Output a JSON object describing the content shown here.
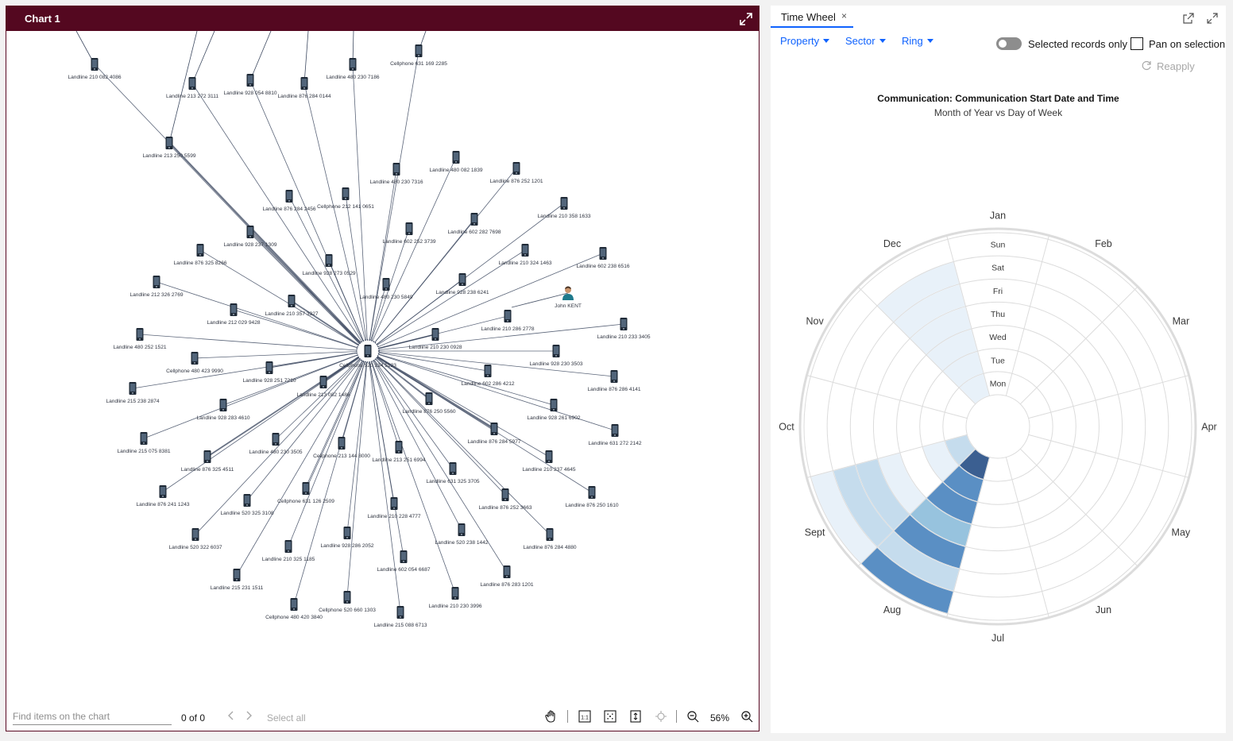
{
  "chart_panel": {
    "title": "Chart 1",
    "footer": {
      "find_placeholder": "Find items on the chart",
      "match_count": "0 of 0",
      "select_all": "Select all",
      "zoom": "56%"
    }
  },
  "graph": {
    "hub": {
      "label": "Cellphone 520 134 5123",
      "icon": "phone-icon"
    },
    "nodes": [
      {
        "label": "Landline 210 082 4086",
        "icon": "phone-icon"
      },
      {
        "label": "Landline 213 272 3111",
        "icon": "phone-icon"
      },
      {
        "label": "Landline 928 054 8810",
        "icon": "phone-icon"
      },
      {
        "label": "Landline 876 284 0144",
        "icon": "phone-icon"
      },
      {
        "label": "Landline 480 230 7186",
        "icon": "phone-icon"
      },
      {
        "label": "Cellphone 631 169 2285",
        "icon": "phone-icon"
      },
      {
        "label": "Landline 213 250 5599",
        "icon": "phone-icon"
      },
      {
        "label": "Landline 480 230 7316",
        "icon": "phone-icon"
      },
      {
        "label": "Landline 480 082 1839",
        "icon": "phone-icon"
      },
      {
        "label": "Landline 876 252 1201",
        "icon": "phone-icon"
      },
      {
        "label": "Landline 876 284 2456",
        "icon": "phone-icon"
      },
      {
        "label": "Cellphone 212 141 0651",
        "icon": "phone-icon"
      },
      {
        "label": "Landline 210 358 1633",
        "icon": "phone-icon"
      },
      {
        "label": "Landline 602 282 7698",
        "icon": "phone-icon"
      },
      {
        "label": "Landline 602 252 3739",
        "icon": "phone-icon"
      },
      {
        "label": "Landline 928 237 1309",
        "icon": "phone-icon"
      },
      {
        "label": "Landline 876 325 8266",
        "icon": "phone-icon"
      },
      {
        "label": "Landline 928 273 0529",
        "icon": "phone-icon"
      },
      {
        "label": "Landline 210 324 1463",
        "icon": "phone-icon"
      },
      {
        "label": "Landline 602 238 6516",
        "icon": "phone-icon"
      },
      {
        "label": "Landline 212 326 2769",
        "icon": "phone-icon"
      },
      {
        "label": "Landline 480 230 5849",
        "icon": "phone-icon"
      },
      {
        "label": "Landline 928 238 6241",
        "icon": "phone-icon"
      },
      {
        "label": "John KENT",
        "icon": "person-icon"
      },
      {
        "label": "Landline 210 357 3327",
        "icon": "phone-icon"
      },
      {
        "label": "Landline 212 029 9428",
        "icon": "phone-icon"
      },
      {
        "label": "Landline 210 286 2778",
        "icon": "phone-icon"
      },
      {
        "label": "Landline 210 233 3405",
        "icon": "phone-icon"
      },
      {
        "label": "Landline 480 252 1521",
        "icon": "phone-icon"
      },
      {
        "label": "Landline 210 230 0928",
        "icon": "phone-icon"
      },
      {
        "label": "Cellphone 480 423 9990",
        "icon": "phone-icon"
      },
      {
        "label": "Landline 928 230 3503",
        "icon": "phone-icon"
      },
      {
        "label": "Landline 928 251 7210",
        "icon": "phone-icon"
      },
      {
        "label": "Landline 876 286 4141",
        "icon": "phone-icon"
      },
      {
        "label": "Landline 602 286 4212",
        "icon": "phone-icon"
      },
      {
        "label": "Landline 215 238 2874",
        "icon": "phone-icon"
      },
      {
        "label": "Landline 213 082 1486",
        "icon": "phone-icon"
      },
      {
        "label": "Landline 928 283 4610",
        "icon": "phone-icon"
      },
      {
        "label": "Landline 876 250 5560",
        "icon": "phone-icon"
      },
      {
        "label": "Landline 928 261 6902",
        "icon": "phone-icon"
      },
      {
        "label": "Landline 631 272 2142",
        "icon": "phone-icon"
      },
      {
        "label": "Landline 876 284 5977",
        "icon": "phone-icon"
      },
      {
        "label": "Landline 215 075 8381",
        "icon": "phone-icon"
      },
      {
        "label": "Landline 480 230 3505",
        "icon": "phone-icon"
      },
      {
        "label": "Cellphone 213 144 8000",
        "icon": "phone-icon"
      },
      {
        "label": "Landline 213 251 6994",
        "icon": "phone-icon"
      },
      {
        "label": "Landline 876 325 4511",
        "icon": "phone-icon"
      },
      {
        "label": "Landline 210 237 4645",
        "icon": "phone-icon"
      },
      {
        "label": "Landline 631 325 3705",
        "icon": "phone-icon"
      },
      {
        "label": "Landline 876 241 1243",
        "icon": "phone-icon"
      },
      {
        "label": "Landline 520 325 3108",
        "icon": "phone-icon"
      },
      {
        "label": "Cellphone 631 126 2509",
        "icon": "phone-icon"
      },
      {
        "label": "Landline 876 252 3663",
        "icon": "phone-icon"
      },
      {
        "label": "Landline 876 250 1610",
        "icon": "phone-icon"
      },
      {
        "label": "Landline 210 228 4777",
        "icon": "phone-icon"
      },
      {
        "label": "Landline 520 322 6037",
        "icon": "phone-icon"
      },
      {
        "label": "Landline 520 238 1442",
        "icon": "phone-icon"
      },
      {
        "label": "Landline 876 284 4880",
        "icon": "phone-icon"
      },
      {
        "label": "Landline 928 286 2052",
        "icon": "phone-icon"
      },
      {
        "label": "Landline 210 325 1185",
        "icon": "phone-icon"
      },
      {
        "label": "Landline 602 054 6687",
        "icon": "phone-icon"
      },
      {
        "label": "Landline 876 283 1201",
        "icon": "phone-icon"
      },
      {
        "label": "Landline 215 231 1511",
        "icon": "phone-icon"
      },
      {
        "label": "Landline 210 230 3996",
        "icon": "phone-icon"
      },
      {
        "label": "Cellphone 520 660 1303",
        "icon": "phone-icon"
      },
      {
        "label": "Cellphone 480 420 3840",
        "icon": "phone-icon"
      },
      {
        "label": "Landline 215 088 6713",
        "icon": "phone-icon"
      }
    ]
  },
  "wheel_panel": {
    "tab_label": "Time Wheel",
    "tab_close": "×",
    "dropdowns": [
      "Property",
      "Sector",
      "Ring"
    ],
    "selected_records_label": "Selected records only",
    "selected_records_on": false,
    "pan_label": "Pan on selection",
    "pan_checked": false,
    "reapply_label": "Reapply",
    "title": "Communication: Communication Start Date and Time",
    "subtitle": "Month of Year vs Day of Week"
  },
  "chart_data": {
    "type": "heatmap",
    "variant": "radial time wheel",
    "sectors": [
      "Jan",
      "Feb",
      "Mar",
      "Apr",
      "May",
      "Jun",
      "Jul",
      "Aug",
      "Sept",
      "Oct",
      "Nov",
      "Dec"
    ],
    "rings": [
      "Mon",
      "Tue",
      "Wed",
      "Thu",
      "Fri",
      "Sat",
      "Sun"
    ],
    "intensity_scale": "0 = empty, 5 = darkest blue",
    "values": [
      [
        0,
        0,
        0,
        0,
        0,
        0,
        0
      ],
      [
        0,
        0,
        0,
        0,
        0,
        0,
        0
      ],
      [
        0,
        0,
        0,
        0,
        0,
        0,
        0
      ],
      [
        0,
        0,
        0,
        0,
        0,
        0,
        0
      ],
      [
        0,
        0,
        0,
        0,
        0,
        0,
        0
      ],
      [
        0,
        0,
        0,
        0,
        0,
        0,
        0
      ],
      [
        0,
        0,
        0,
        0,
        0,
        0,
        0
      ],
      [
        5,
        4,
        4,
        3,
        4,
        2,
        4
      ],
      [
        2,
        1,
        0,
        1,
        2,
        2,
        1
      ],
      [
        0,
        0,
        0,
        0,
        0,
        0,
        0
      ],
      [
        0,
        0,
        0,
        0,
        0,
        0,
        0
      ],
      [
        1,
        1,
        1,
        1,
        1,
        1,
        0
      ]
    ],
    "colors": [
      "#ffffff",
      "#e8f1f9",
      "#c5dced",
      "#97c3de",
      "#5a8fc4",
      "#3b5f91"
    ]
  }
}
